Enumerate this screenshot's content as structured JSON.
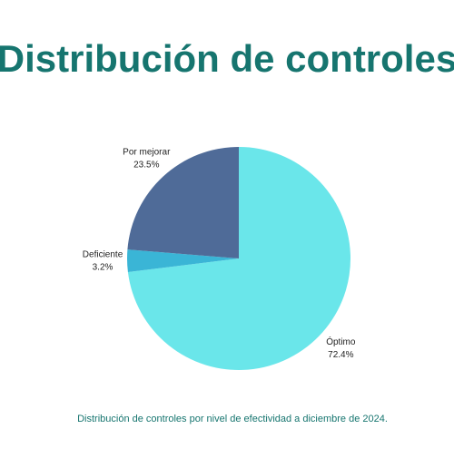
{
  "chart_data": {
    "type": "pie",
    "title": "Distribución de controles",
    "caption": "Distribución de controles por nivel de efectividad a diciembre de 2024.",
    "categories": [
      "Óptimo",
      "Deficiente",
      "Por mejorar"
    ],
    "values": [
      72.4,
      3.2,
      23.5
    ],
    "value_labels": [
      "72.4%",
      "3.2%",
      "23.5%"
    ],
    "colors": [
      "#6ae6ea",
      "#3ab5d6",
      "#4f6b98"
    ]
  }
}
